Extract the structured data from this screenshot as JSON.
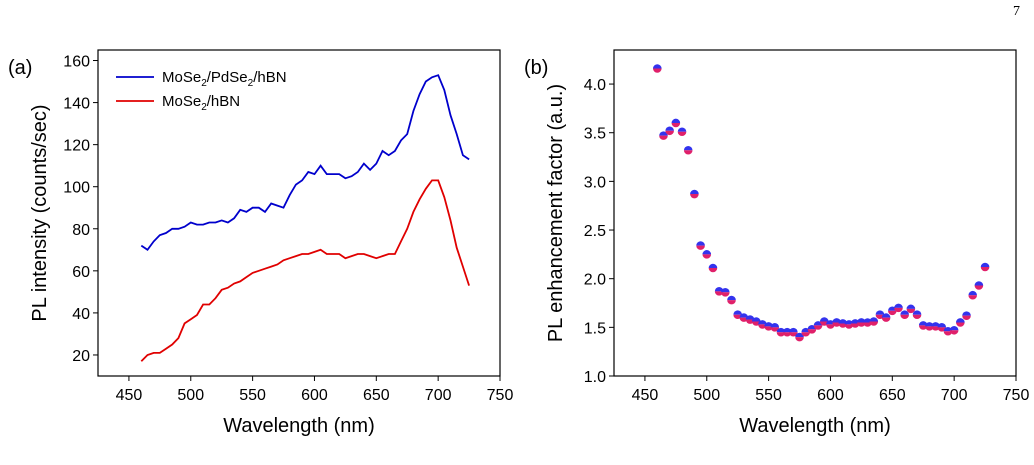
{
  "page_number": "7",
  "chart_data": [
    {
      "type": "line",
      "panel_label": "(a)",
      "xlabel": "Wavelength (nm)",
      "ylabel": "PL intensity (counts/sec)",
      "xlim": [
        425,
        750
      ],
      "ylim": [
        10,
        165
      ],
      "xticks": [
        450,
        500,
        550,
        600,
        650,
        700,
        750
      ],
      "yticks": [
        20,
        40,
        60,
        80,
        100,
        120,
        140,
        160
      ],
      "legend_position": "top-left",
      "series": [
        {
          "legend": [
            "MoSe",
            "2",
            "/PdSe",
            "2",
            "/hBN"
          ],
          "color": "#0000cc",
          "x": [
            460,
            465,
            470,
            475,
            480,
            485,
            490,
            495,
            500,
            505,
            510,
            515,
            520,
            525,
            530,
            535,
            540,
            545,
            550,
            555,
            560,
            565,
            570,
            575,
            580,
            585,
            590,
            595,
            600,
            605,
            610,
            615,
            620,
            625,
            630,
            635,
            640,
            645,
            650,
            655,
            660,
            665,
            670,
            675,
            680,
            685,
            690,
            695,
            700,
            705,
            710,
            715,
            720,
            725
          ],
          "y": [
            72,
            70,
            74,
            77,
            78,
            80,
            80,
            81,
            83,
            82,
            82,
            83,
            83,
            84,
            83,
            85,
            89,
            88,
            90,
            90,
            88,
            92,
            91,
            90,
            96,
            101,
            103,
            107,
            106,
            110,
            106,
            106,
            106,
            104,
            105,
            107,
            111,
            108,
            111,
            117,
            115,
            117,
            122,
            125,
            136,
            144,
            150,
            152,
            153,
            146,
            134,
            125,
            115,
            113
          ]
        },
        {
          "legend": [
            "MoSe",
            "2",
            "/hBN"
          ],
          "color": "#e00000",
          "x": [
            460,
            465,
            470,
            475,
            480,
            485,
            490,
            495,
            500,
            505,
            510,
            515,
            520,
            525,
            530,
            535,
            540,
            545,
            550,
            555,
            560,
            565,
            570,
            575,
            580,
            585,
            590,
            595,
            600,
            605,
            610,
            615,
            620,
            625,
            630,
            635,
            640,
            645,
            650,
            655,
            660,
            665,
            670,
            675,
            680,
            685,
            690,
            695,
            700,
            705,
            710,
            715,
            720,
            725
          ],
          "y": [
            17,
            20,
            21,
            21,
            23,
            25,
            28,
            35,
            37,
            39,
            44,
            44,
            47,
            51,
            52,
            54,
            55,
            57,
            59,
            60,
            61,
            62,
            63,
            65,
            66,
            67,
            68,
            68,
            69,
            70,
            68,
            68,
            68,
            66,
            67,
            68,
            68,
            67,
            66,
            67,
            68,
            68,
            74,
            80,
            88,
            94,
            99,
            103,
            103,
            95,
            84,
            71,
            62,
            53
          ]
        }
      ]
    },
    {
      "type": "scatter",
      "panel_label": "(b)",
      "xlabel": "Wavelength (nm)",
      "ylabel": "PL enhancement factor (a.u.)",
      "xlim": [
        425,
        750
      ],
      "ylim": [
        1.0,
        4.35
      ],
      "xticks": [
        450,
        500,
        550,
        600,
        650,
        700,
        750
      ],
      "yticks": [
        "1.0",
        "1.5",
        "2.0",
        "2.5",
        "3.0",
        "3.5",
        "4.0"
      ],
      "marker_colors": {
        "top": "#3333ee",
        "bottom": "#e0206a"
      },
      "x": [
        460,
        465,
        470,
        475,
        480,
        485,
        490,
        495,
        500,
        505,
        510,
        515,
        520,
        525,
        530,
        535,
        540,
        545,
        550,
        555,
        560,
        565,
        570,
        575,
        580,
        585,
        590,
        595,
        600,
        605,
        610,
        615,
        620,
        625,
        630,
        635,
        640,
        645,
        650,
        655,
        660,
        665,
        670,
        675,
        680,
        685,
        690,
        695,
        700,
        705,
        710,
        715,
        720,
        725
      ],
      "y": [
        4.16,
        3.47,
        3.52,
        3.6,
        3.51,
        3.32,
        2.87,
        2.34,
        2.25,
        2.11,
        1.87,
        1.86,
        1.78,
        1.63,
        1.6,
        1.58,
        1.56,
        1.53,
        1.51,
        1.5,
        1.45,
        1.45,
        1.45,
        1.4,
        1.45,
        1.48,
        1.52,
        1.56,
        1.53,
        1.55,
        1.54,
        1.53,
        1.54,
        1.55,
        1.55,
        1.56,
        1.63,
        1.6,
        1.67,
        1.7,
        1.63,
        1.69,
        1.63,
        1.52,
        1.51,
        1.51,
        1.5,
        1.46,
        1.47,
        1.55,
        1.62,
        1.83,
        1.93,
        2.12
      ]
    }
  ]
}
